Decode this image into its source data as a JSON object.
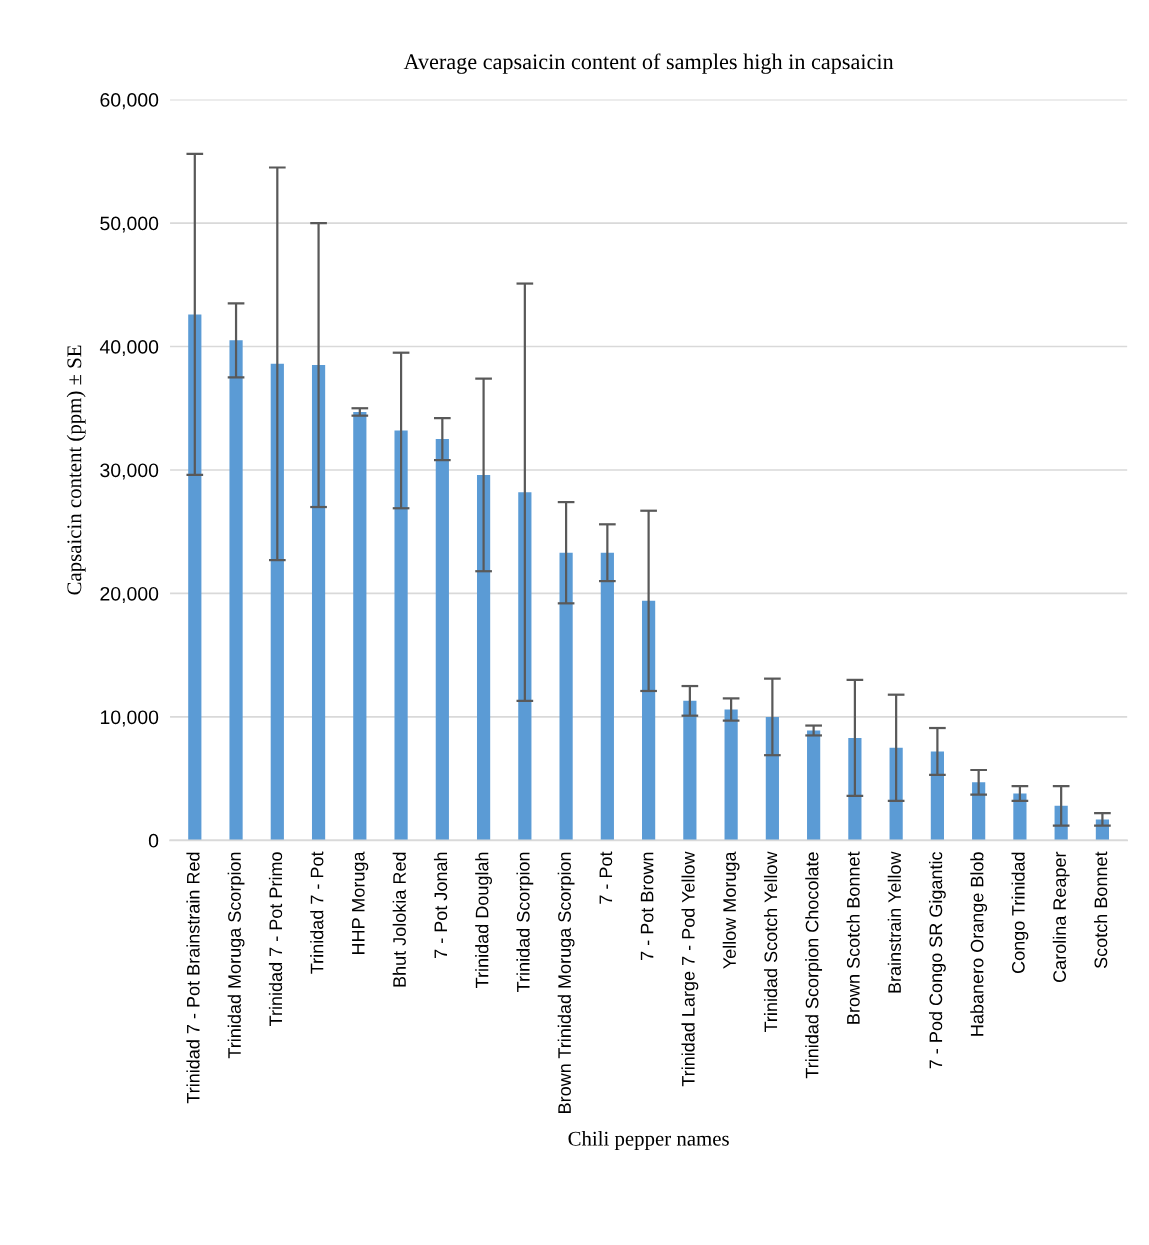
{
  "chart_data": {
    "type": "bar",
    "title": "Average capsaicin content of samples high in capsaicin",
    "xlabel": "Chili pepper names",
    "ylabel": "Capsaicin content (ppm) ± SE",
    "categories": [
      "Trinidad 7 - Pot Brainstrain Red",
      "Trinidad Moruga Scorpion",
      "Trinidad 7 - Pot Primo",
      "Trinidad 7 - Pot",
      "HHP Moruga",
      "Bhut Jolokia Red",
      "7 - Pot Jonah",
      "Trinidad Douglah",
      "Trinidad Scorpion",
      "Brown Trinidad Moruga Scorpion",
      "7 - Pot",
      "7 - Pot Brown",
      "Trinidad Large 7 - Pod Yellow",
      "Yellow Moruga",
      "Trinidad Scotch Yellow",
      "Trinidad Scorpion Chocolate",
      "Brown Scotch Bonnet",
      "Brainstrain Yellow",
      "7 - Pod Congo SR Gigantic",
      "Habanero Orange Blob",
      "Congo Trinidad",
      "Carolina Reaper",
      "Scotch Bonnet"
    ],
    "values": [
      42600,
      40500,
      38600,
      38500,
      34700,
      33200,
      32500,
      29600,
      28200,
      23300,
      23300,
      19400,
      11300,
      10600,
      10000,
      8900,
      8300,
      7500,
      7200,
      4700,
      3800,
      2800,
      1700
    ],
    "errors": [
      13000,
      3000,
      15900,
      11500,
      300,
      6300,
      1700,
      7800,
      16900,
      4100,
      2300,
      7300,
      1200,
      900,
      3100,
      400,
      4700,
      4300,
      1900,
      1000,
      600,
      1600,
      500
    ],
    "color": "#5b9bd5",
    "ylim": [
      0,
      60000
    ],
    "yticks": [
      {
        "value": 0,
        "label": "0"
      },
      {
        "value": 10000,
        "label": "10,000"
      },
      {
        "value": 20000,
        "label": "20,000"
      },
      {
        "value": 30000,
        "label": "30,000"
      },
      {
        "value": 40000,
        "label": "40,000"
      },
      {
        "value": 50000,
        "label": "50,000"
      },
      {
        "value": 60000,
        "label": "60,000"
      }
    ],
    "grid": "y"
  }
}
